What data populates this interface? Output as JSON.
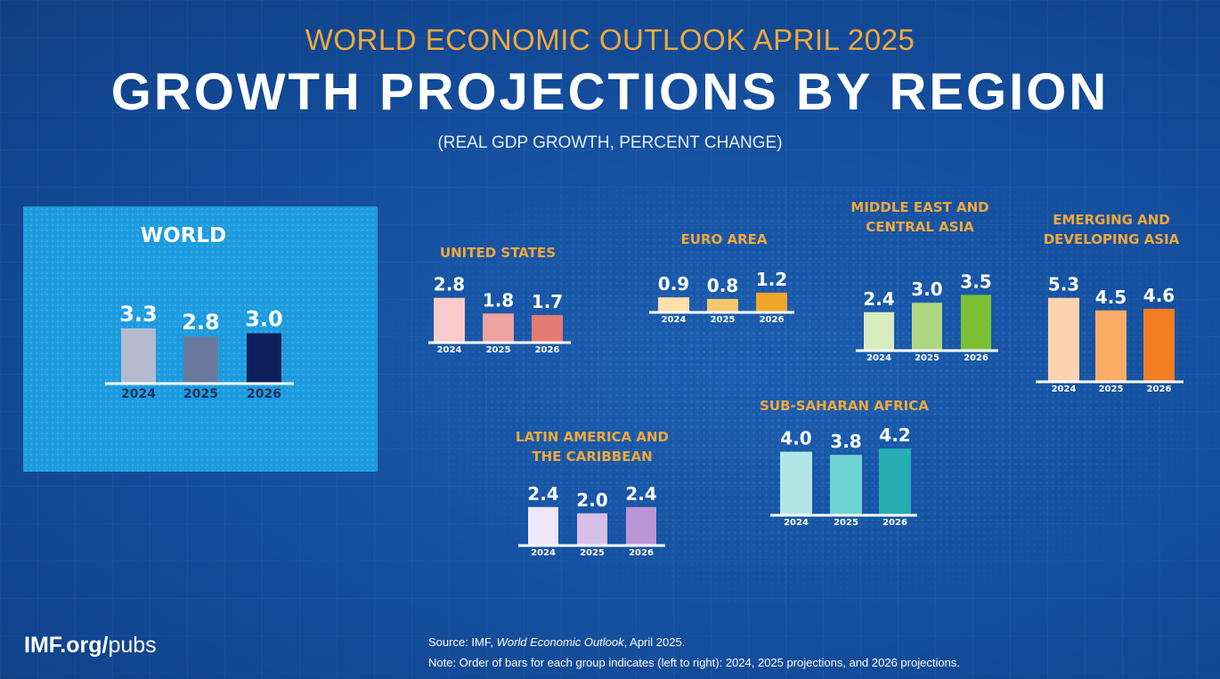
{
  "header": {
    "kicker": "WORLD ECONOMIC OUTLOOK APRIL 2025",
    "title": "GROWTH PROJECTIONS BY REGION",
    "subtitle": "(REAL GDP GROWTH, PERCENT CHANGE)"
  },
  "chart_data": {
    "type": "bar",
    "categories": [
      "2024",
      "2025",
      "2026"
    ],
    "groups": [
      {
        "title_lines": [
          "WORLD"
        ],
        "values": [
          3.3,
          2.8,
          3.0
        ],
        "value_labels": [
          "3.3",
          "2.8",
          "3.0"
        ],
        "colors": [
          "#b4bbcf",
          "#6a7a9e",
          "#0d1f5c"
        ]
      },
      {
        "title_lines": [
          "UNITED STATES"
        ],
        "values": [
          2.8,
          1.8,
          1.7
        ],
        "value_labels": [
          "2.8",
          "1.8",
          "1.7"
        ],
        "colors": [
          "#f7cccb",
          "#eda3a0",
          "#e57b75"
        ]
      },
      {
        "title_lines": [
          "EURO AREA"
        ],
        "values": [
          0.9,
          0.8,
          1.2
        ],
        "value_labels": [
          "0.9",
          "0.8",
          "1.2"
        ],
        "colors": [
          "#fbe0ab",
          "#f6c66d",
          "#f1a62b"
        ]
      },
      {
        "title_lines": [
          "MIDDLE EAST AND",
          "CENTRAL ASIA"
        ],
        "values": [
          2.4,
          3.0,
          3.5
        ],
        "value_labels": [
          "2.4",
          "3.0",
          "3.5"
        ],
        "colors": [
          "#d9ecbf",
          "#aed784",
          "#7cc037"
        ]
      },
      {
        "title_lines": [
          "EMERGING AND",
          "DEVELOPING ASIA"
        ],
        "values": [
          5.3,
          4.5,
          4.6
        ],
        "value_labels": [
          "5.3",
          "4.5",
          "4.6"
        ],
        "colors": [
          "#fdd3af",
          "#fbad68",
          "#f47e23"
        ]
      },
      {
        "title_lines": [
          "LATIN AMERICA AND",
          "THE CARIBBEAN"
        ],
        "values": [
          2.4,
          2.0,
          2.4
        ],
        "value_labels": [
          "2.4",
          "2.0",
          "2.4"
        ],
        "colors": [
          "#efe6f6",
          "#d7c0e8",
          "#bb96d6"
        ]
      },
      {
        "title_lines": [
          "SUB-SAHARAN AFRICA"
        ],
        "values": [
          4.0,
          3.8,
          4.2
        ],
        "value_labels": [
          "4.0",
          "3.8",
          "4.2"
        ],
        "colors": [
          "#b0e6e8",
          "#6fd2d4",
          "#26aeb3"
        ]
      }
    ]
  },
  "footer": {
    "logo_strong": "IMF.org/",
    "logo_rest": "pubs",
    "source_prefix": "Source:  IMF, ",
    "source_title": "World Economic Outlook",
    "source_suffix": ", April 2025.",
    "note": "Note:  Order of bars for each group indicates (left to right): 2024, 2025 projections, and 2026 projections."
  },
  "colors": {
    "background": "#1550a0",
    "world_panel": "#1b9be0",
    "accent_orange": "#f2a93b"
  }
}
